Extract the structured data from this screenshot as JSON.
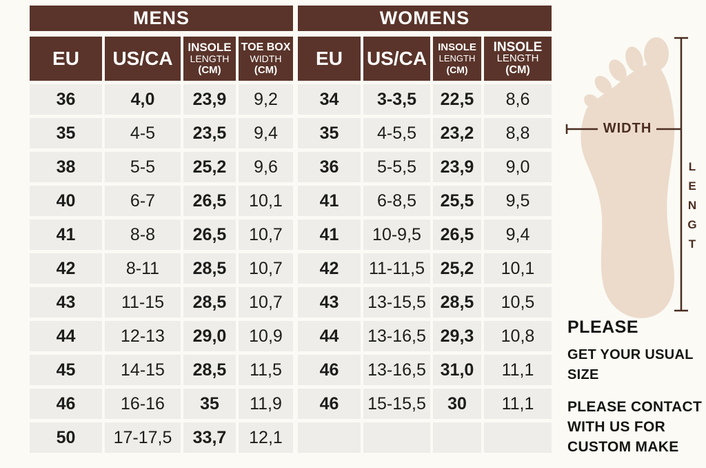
{
  "colors": {
    "band_brown": "#5a342a",
    "cell_gray": "#eeede9",
    "page_cream": "#fbfaf5",
    "foot_beige": "#ecdbcb",
    "line_brown": "#4b2d20",
    "text_black": "#1d1d1b"
  },
  "mens": {
    "title": "MENS",
    "headers": [
      {
        "l1": "EU"
      },
      {
        "l1": "US/CA"
      },
      {
        "l1": "INSOLE",
        "l2": "LENGTH",
        "l3": "(CM)"
      },
      {
        "l1": "TOE BOX",
        "l2": "WIDTH",
        "l3": "(CM)"
      }
    ],
    "rows": [
      [
        "36",
        "4,0",
        "23,9",
        "9,2"
      ],
      [
        "35",
        "4-5",
        "23,5",
        "9,4"
      ],
      [
        "38",
        "5-5",
        "25,2",
        "9,6"
      ],
      [
        "40",
        "6-7",
        "26,5",
        "10,1"
      ],
      [
        "41",
        "8-8",
        "26,5",
        "10,7"
      ],
      [
        "42",
        "8-11",
        "28,5",
        "10,7"
      ],
      [
        "43",
        "11-15",
        "28,5",
        "10,7"
      ],
      [
        "44",
        "12-13",
        "29,0",
        "10,9"
      ],
      [
        "45",
        "14-15",
        "28,5",
        "11,5"
      ],
      [
        "46",
        "16-16",
        "35",
        "11,9"
      ],
      [
        "50",
        "17-17,5",
        "33,7",
        "12,1"
      ]
    ]
  },
  "womens": {
    "title": "WOMENS",
    "headers": [
      {
        "l1": "EU"
      },
      {
        "l1": "US/CA"
      },
      {
        "l1": "INSOLE",
        "l2": "LENGTH",
        "l3": "(CM)"
      },
      {
        "l1": "INSOLE",
        "l2": "LENGTH",
        "l3": "(CM)"
      }
    ],
    "rows": [
      [
        "34",
        "3-3,5",
        "22,5",
        "8,6"
      ],
      [
        "35",
        "4-5,5",
        "23,2",
        "8,8"
      ],
      [
        "36",
        "5-5,5",
        "23,9",
        "9,0"
      ],
      [
        "41",
        "6-8,5",
        "25,5",
        "9,5"
      ],
      [
        "41",
        "10-9,5",
        "26,5",
        "9,4"
      ],
      [
        "42",
        "11-11,5",
        "25,2",
        "10,1"
      ],
      [
        "43",
        "13-15,5",
        "28,5",
        "10,5"
      ],
      [
        "44",
        "13-16,5",
        "29,3",
        "10,8"
      ],
      [
        "46",
        "13-16,5",
        "31,0",
        "11,1"
      ],
      [
        "46",
        "15-15,5",
        "30",
        "11,1"
      ],
      [
        "",
        "",
        "",
        ""
      ]
    ]
  },
  "diagram": {
    "width_label": "WIDTH",
    "length_letters": [
      "L",
      "E",
      "N",
      "G",
      "T"
    ]
  },
  "notes": {
    "line1": "PLEASE",
    "line2": "GET YOUR USUAL",
    "line3": "SIZE",
    "line4": "PLEASE CONTACT",
    "line5": "WITH US FOR",
    "line6": "CUSTOM MAKE"
  }
}
